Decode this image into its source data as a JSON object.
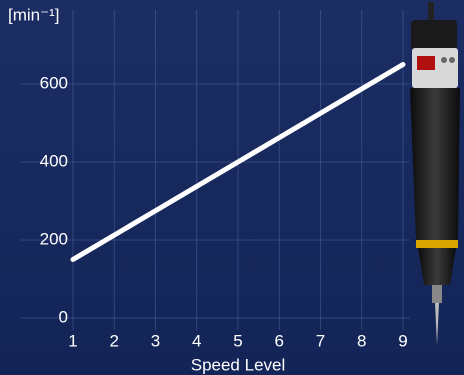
{
  "chart_data": {
    "type": "line",
    "y_label": "[min⁻¹]",
    "x_label": "Speed Level",
    "x": [
      1,
      2,
      3,
      4,
      5,
      6,
      7,
      8,
      9
    ],
    "xlim": [
      1,
      9
    ],
    "xticks": [
      1,
      2,
      3,
      4,
      5,
      6,
      7,
      8,
      9
    ],
    "series": [
      {
        "color": "#ffffff",
        "values": [
          150,
          212.5,
          275,
          337.5,
          400,
          462.5,
          525,
          587.5,
          650
        ]
      }
    ],
    "ylim": [
      0,
      800
    ],
    "yticks": [
      0,
      200,
      400,
      600
    ],
    "grid": true
  }
}
